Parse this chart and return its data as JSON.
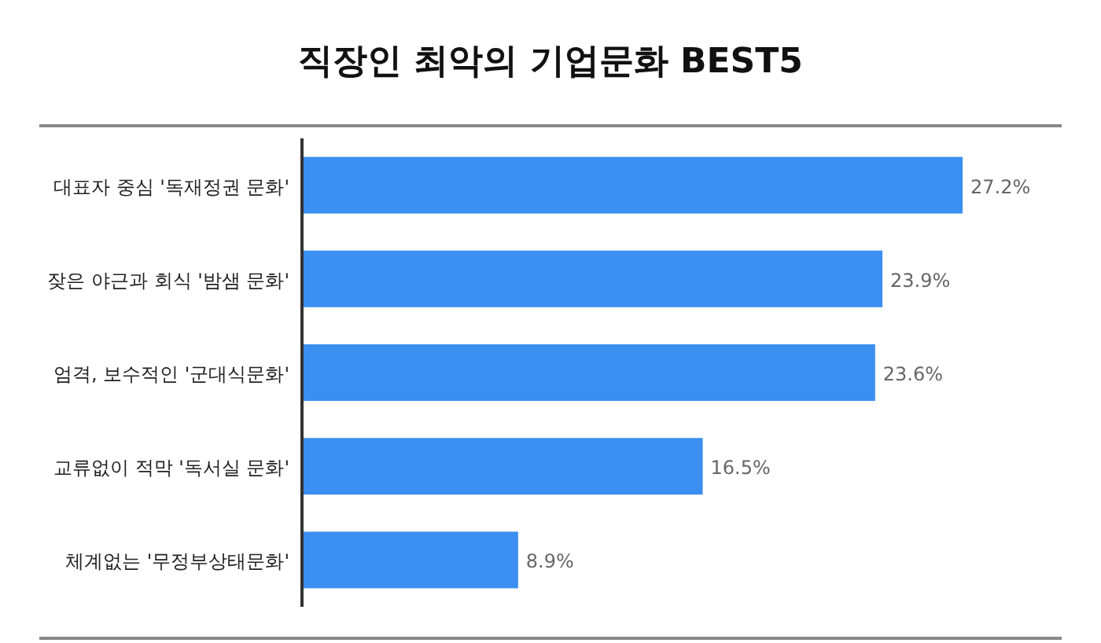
{
  "chart_data": {
    "type": "bar",
    "orientation": "horizontal",
    "title": "직장인 최악의 기업문화 BEST5",
    "categories": [
      "대표자 중심 '독재정권 문화'",
      "잦은 야근과 회식 '밤샘 문화'",
      "엄격, 보수적인 '군대식문화'",
      "교류없이 적막 '독서실 문화'",
      "체계없는 '무정부상태문화'"
    ],
    "values": [
      27.2,
      23.9,
      23.6,
      16.5,
      8.9
    ],
    "value_labels": [
      "27.2%",
      "23.9%",
      "23.6%",
      "16.5%",
      "8.9%"
    ],
    "color": "#3b8ff0"
  }
}
